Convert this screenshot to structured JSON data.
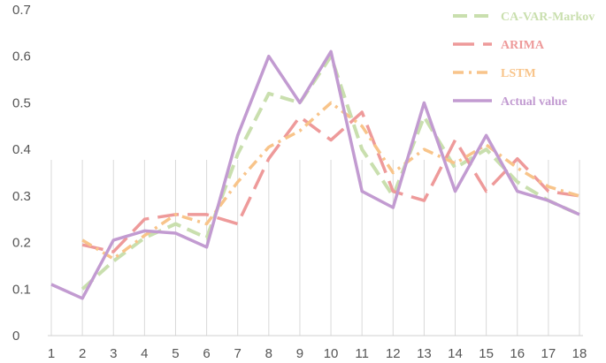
{
  "chart_data": {
    "type": "line",
    "title": "",
    "xlabel": "",
    "ylabel": "",
    "x": [
      1,
      2,
      3,
      4,
      5,
      6,
      7,
      8,
      9,
      10,
      11,
      12,
      13,
      14,
      15,
      16,
      17,
      18
    ],
    "ylim": [
      0,
      0.7
    ],
    "y_ticks": [
      "0",
      "0.1",
      "0.2",
      "0.3",
      "0.4",
      "0.5",
      "0.6",
      "0.7"
    ],
    "grid": "vertical lines at x categories",
    "legend_position": "top-right",
    "series": [
      {
        "name": "CA-VAR-Markov",
        "color": "#c9dfae",
        "style": "dashed",
        "x": [
          2,
          3,
          4,
          5,
          6,
          7,
          8,
          9,
          10,
          11,
          12,
          13,
          14,
          15,
          16,
          17,
          18
        ],
        "values": [
          0.1,
          0.16,
          0.21,
          0.24,
          0.21,
          0.39,
          0.52,
          0.5,
          0.6,
          0.4,
          0.3,
          0.47,
          0.36,
          0.4,
          0.33,
          0.29,
          0.26
        ]
      },
      {
        "name": "ARIMA",
        "color": "#ee9a9a",
        "style": "long-dash",
        "x": [
          2,
          3,
          4,
          5,
          6,
          7,
          8,
          9,
          10,
          11,
          12,
          13,
          14,
          15,
          16,
          17,
          18
        ],
        "values": [
          0.195,
          0.18,
          0.25,
          0.26,
          0.26,
          0.24,
          0.38,
          0.47,
          0.42,
          0.48,
          0.31,
          0.29,
          0.42,
          0.31,
          0.38,
          0.31,
          0.3
        ]
      },
      {
        "name": "LSTM",
        "color": "#f8c48a",
        "style": "dash-dot",
        "x": [
          2,
          3,
          4,
          5,
          6,
          7,
          8,
          9,
          10,
          11,
          12,
          13,
          14,
          15,
          16,
          17,
          18
        ],
        "values": [
          0.205,
          0.165,
          0.215,
          0.26,
          0.24,
          0.33,
          0.405,
          0.44,
          0.5,
          0.45,
          0.35,
          0.4,
          0.37,
          0.41,
          0.36,
          0.32,
          0.3
        ]
      },
      {
        "name": "Actual value",
        "color": "#c29bd1",
        "style": "solid",
        "x": [
          1,
          2,
          3,
          4,
          5,
          6,
          7,
          8,
          9,
          10,
          11,
          12,
          13,
          14,
          15,
          16,
          17,
          18
        ],
        "values": [
          0.11,
          0.08,
          0.205,
          0.225,
          0.22,
          0.19,
          0.43,
          0.6,
          0.5,
          0.61,
          0.31,
          0.275,
          0.5,
          0.31,
          0.43,
          0.31,
          0.29,
          0.26
        ]
      }
    ]
  }
}
